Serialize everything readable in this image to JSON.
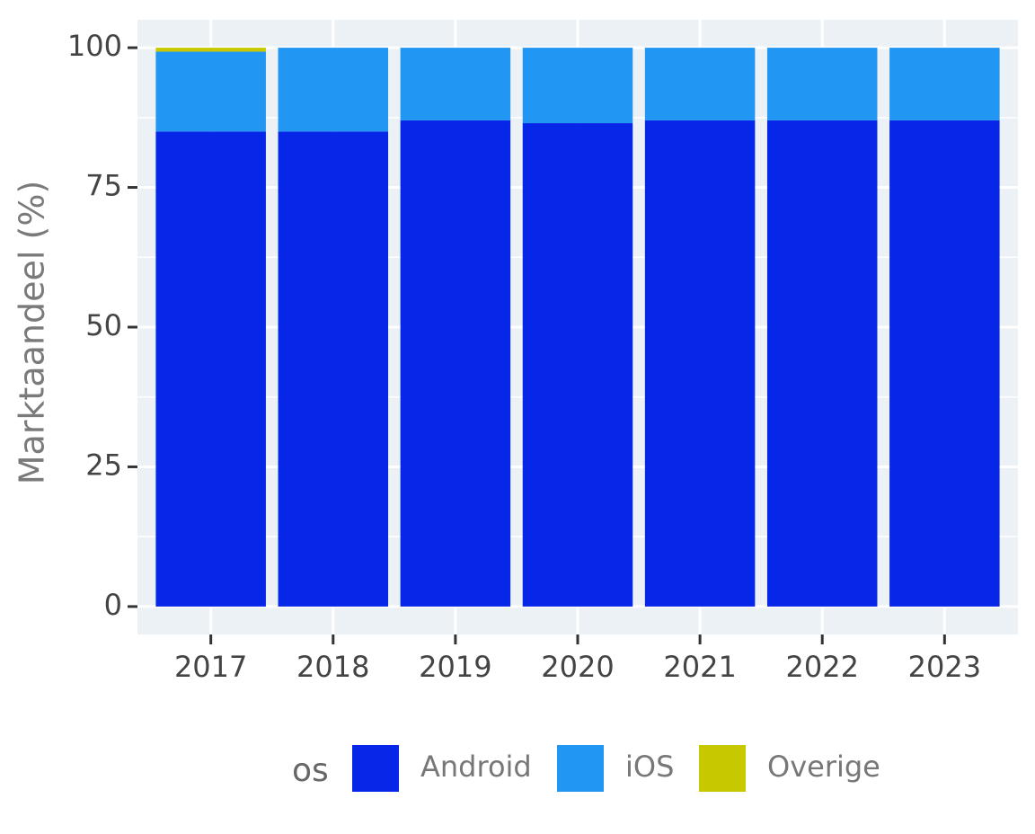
{
  "chart_data": {
    "type": "stacked_bar",
    "y_label": "Marktaandeel (%)",
    "categories": [
      "2017",
      "2018",
      "2019",
      "2020",
      "2021",
      "2022",
      "2023"
    ],
    "series": [
      {
        "name": "Android",
        "color": "#0727e8",
        "values": [
          85,
          85,
          87,
          86.5,
          87,
          87,
          87
        ]
      },
      {
        "name": "iOS",
        "color": "#2196f3",
        "values": [
          14.3,
          15,
          13,
          13.5,
          13,
          13,
          13
        ]
      },
      {
        "name": "Overige",
        "color": "#c8c800",
        "values": [
          0.7,
          0,
          0,
          0,
          0,
          0,
          0
        ]
      }
    ],
    "ylim": [
      -5,
      105
    ],
    "yticks": [
      0,
      25,
      50,
      75,
      100
    ],
    "grid": true,
    "legend_title": "os",
    "legend": "bottom"
  }
}
